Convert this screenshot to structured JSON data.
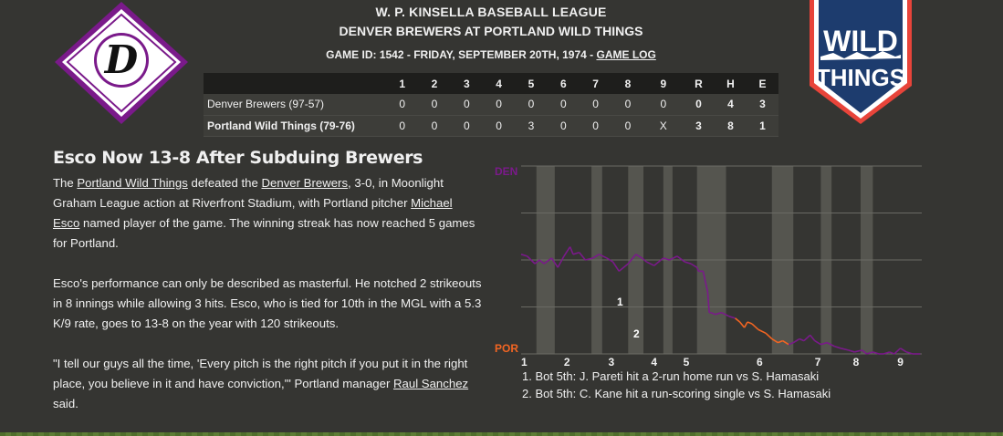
{
  "header": {
    "league": "W. P. KINSELLA BASEBALL LEAGUE",
    "matchup": "DENVER BREWERS AT PORTLAND WILD THINGS",
    "game_info": "GAME ID: 1542 - FRIDAY, SEPTEMBER 20TH, 1974 - ",
    "game_log_link": "GAME LOG"
  },
  "logos": {
    "away_letter": "D",
    "home_line1": "WILD",
    "home_line2": "THINGS"
  },
  "linescore": {
    "columns": [
      "1",
      "2",
      "3",
      "4",
      "5",
      "6",
      "7",
      "8",
      "9",
      "R",
      "H",
      "E"
    ],
    "away": {
      "team": "Denver Brewers (97-57)",
      "scores": [
        "0",
        "0",
        "0",
        "0",
        "0",
        "0",
        "0",
        "0",
        "0",
        "0",
        "4",
        "3"
      ]
    },
    "home": {
      "team": "Portland Wild Things (79-76)",
      "scores": [
        "0",
        "0",
        "0",
        "0",
        "3",
        "0",
        "0",
        "0",
        "X",
        "3",
        "8",
        "1"
      ]
    }
  },
  "article": {
    "headline": "Esco Now 13-8 After Subduing Brewers",
    "p1": {
      "t1": "The ",
      "link1": "Portland Wild Things",
      "t2": " defeated the ",
      "link2": "Denver Brewers",
      "t3": ", 3-0, in Moonlight Graham League action at Riverfront Stadium, with Portland pitcher ",
      "link3": "Michael Esco",
      "t4": " named player of the game. The winning streak has now reached 5 games for Portland."
    },
    "p2": "Esco's performance can only be described as masterful. He notched 2 strikeouts in 8 innings while allowing 3 hits. Esco, who is tied for 10th in the MGL with a 5.3 K/9 rate, goes to 13-8 on the year with 120 strikeouts.",
    "p3": {
      "t1": "\"I tell our guys all the time, 'Every pitch is the right pitch if you put it in the right place, you believe in it and have conviction,'\" Portland manager ",
      "link1": "Raul Sanchez",
      "t2": " said."
    }
  },
  "chart_data": {
    "type": "line",
    "top_label": "DEN",
    "bottom_label": "POR",
    "x_ticks": [
      "1",
      "2",
      "3",
      "4",
      "5",
      "6",
      "7",
      "8",
      "9"
    ],
    "ylim": [
      0,
      100
    ],
    "series": [
      {
        "values": [
          [
            0,
            53
          ],
          [
            4,
            52
          ],
          [
            9,
            48
          ],
          [
            12,
            50
          ],
          [
            15,
            48
          ],
          [
            20,
            51
          ],
          [
            24,
            46
          ],
          [
            28,
            52
          ],
          [
            32,
            57
          ],
          [
            34,
            53
          ],
          [
            38,
            54
          ],
          [
            42,
            50
          ],
          [
            47,
            51
          ],
          [
            51,
            53
          ],
          [
            56,
            51
          ],
          [
            60,
            49
          ],
          [
            64,
            44
          ],
          [
            70,
            48
          ],
          [
            75,
            53
          ],
          [
            79,
            51
          ],
          [
            82,
            49
          ],
          [
            87,
            47
          ],
          [
            93,
            51
          ],
          [
            97,
            50
          ],
          [
            102,
            52
          ],
          [
            107,
            49
          ],
          [
            111,
            48
          ],
          [
            115,
            46
          ],
          [
            116,
            44
          ],
          [
            119,
            44
          ],
          [
            122,
            33
          ],
          [
            123,
            22
          ],
          [
            124,
            22
          ],
          [
            127,
            21
          ],
          [
            131,
            22
          ],
          [
            136,
            20
          ],
          [
            140,
            19
          ],
          [
            143,
            17
          ],
          [
            146,
            14
          ],
          [
            148,
            17
          ],
          [
            151,
            16
          ],
          [
            155,
            13
          ],
          [
            160,
            11
          ],
          [
            164,
            8
          ],
          [
            168,
            6
          ],
          [
            171,
            7
          ],
          [
            175,
            5
          ],
          [
            178,
            6
          ],
          [
            182,
            8
          ],
          [
            185,
            7
          ],
          [
            189,
            10
          ],
          [
            192,
            7
          ],
          [
            196,
            5
          ],
          [
            200,
            6
          ],
          [
            205,
            4
          ],
          [
            209,
            3
          ],
          [
            214,
            2
          ],
          [
            218,
            1
          ],
          [
            223,
            2
          ],
          [
            226,
            0
          ],
          [
            230,
            1
          ],
          [
            234,
            0
          ],
          [
            237,
            0
          ],
          [
            241,
            1
          ],
          [
            244,
            0
          ],
          [
            248,
            3
          ],
          [
            252,
            1
          ],
          [
            256,
            0
          ],
          [
            261,
            0
          ]
        ]
      }
    ],
    "annotations": [
      "1",
      "2"
    ],
    "inning_notes": [
      "1. Bot 5th: J. Pareti hit a 2-run home run vs S. Hamasaki",
      "2. Bot 5th: C. Kane hit a run-scoring single vs S. Hamasaki"
    ],
    "colors": {
      "away": "#7a1a8a",
      "home": "#f26522",
      "shade": "#55554f"
    }
  }
}
